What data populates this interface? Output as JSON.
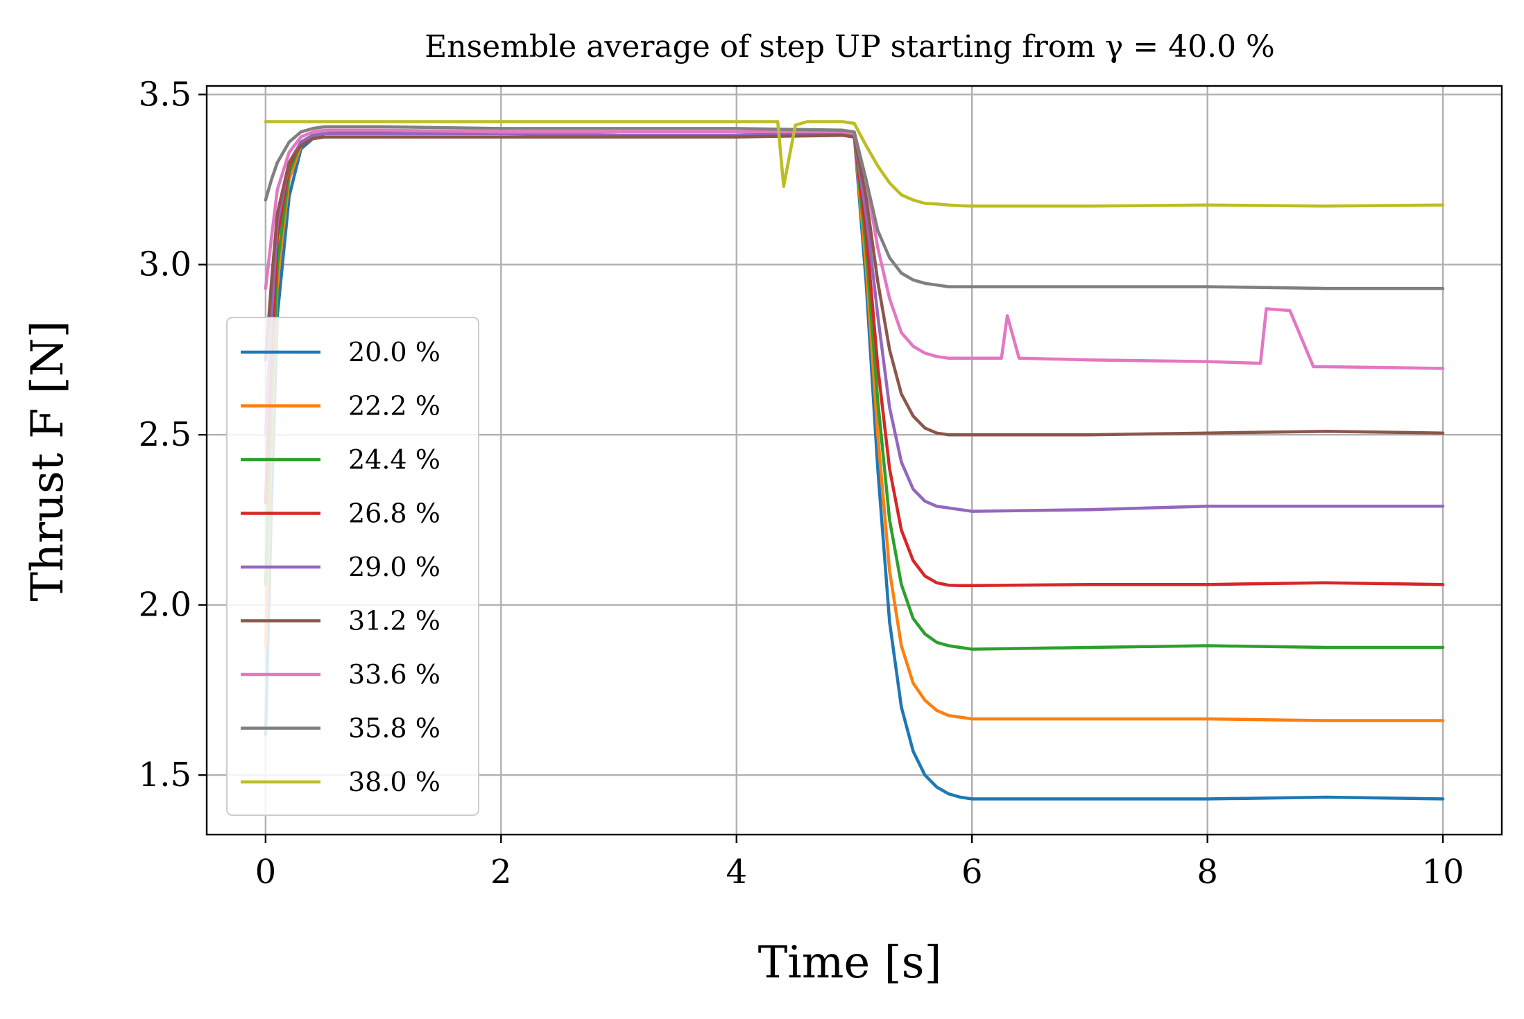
{
  "chart_data": {
    "type": "line",
    "title": "Ensemble average of step UP starting from γ = 40.0 %",
    "xlabel": "Time [s]",
    "ylabel": "Thrust F [N]",
    "xlim": [
      -0.5,
      10.5
    ],
    "ylim": [
      1.325,
      3.525
    ],
    "xticks": [
      0,
      2,
      4,
      6,
      8,
      10
    ],
    "xtick_labels": [
      "0",
      "2",
      "4",
      "6",
      "8",
      "10"
    ],
    "yticks": [
      1.5,
      2.0,
      2.5,
      3.0,
      3.5
    ],
    "ytick_labels": [
      "1.5",
      "2.0",
      "2.5",
      "3.0",
      "3.5"
    ],
    "grid": true,
    "legend_position": "center-left",
    "series": [
      {
        "name": "20.0 %",
        "color": "#1f77b4",
        "x": [
          0,
          0.05,
          0.1,
          0.2,
          0.3,
          0.4,
          0.5,
          1,
          2,
          3,
          4,
          4.9,
          5.0,
          5.1,
          5.2,
          5.3,
          5.4,
          5.5,
          5.6,
          5.7,
          5.8,
          5.9,
          6,
          7,
          8,
          9,
          10
        ],
        "y": [
          1.62,
          2.3,
          2.85,
          3.2,
          3.34,
          3.37,
          3.385,
          3.39,
          3.39,
          3.39,
          3.39,
          3.385,
          3.38,
          2.95,
          2.4,
          1.95,
          1.7,
          1.57,
          1.5,
          1.465,
          1.445,
          1.435,
          1.43,
          1.43,
          1.43,
          1.435,
          1.43
        ]
      },
      {
        "name": "22.2 %",
        "color": "#ff7f0e",
        "x": [
          0,
          0.05,
          0.1,
          0.2,
          0.3,
          0.4,
          0.5,
          1,
          2,
          3,
          4,
          4.9,
          5.0,
          5.1,
          5.2,
          5.3,
          5.4,
          5.5,
          5.6,
          5.7,
          5.8,
          5.9,
          6,
          7,
          8,
          9,
          10
        ],
        "y": [
          1.88,
          2.5,
          2.95,
          3.25,
          3.35,
          3.38,
          3.385,
          3.39,
          3.39,
          3.39,
          3.39,
          3.385,
          3.38,
          3.0,
          2.5,
          2.1,
          1.88,
          1.77,
          1.72,
          1.69,
          1.675,
          1.67,
          1.665,
          1.665,
          1.665,
          1.66,
          1.66
        ]
      },
      {
        "name": "24.4 %",
        "color": "#2ca02c",
        "x": [
          0,
          0.05,
          0.1,
          0.2,
          0.3,
          0.4,
          0.5,
          1,
          2,
          3,
          4,
          4.9,
          5.0,
          5.1,
          5.2,
          5.3,
          5.4,
          5.5,
          5.6,
          5.7,
          5.8,
          5.9,
          6,
          7,
          8,
          9,
          10
        ],
        "y": [
          2.06,
          2.6,
          3.0,
          3.27,
          3.36,
          3.38,
          3.385,
          3.39,
          3.39,
          3.39,
          3.39,
          3.385,
          3.38,
          3.05,
          2.6,
          2.25,
          2.06,
          1.96,
          1.915,
          1.89,
          1.88,
          1.875,
          1.87,
          1.875,
          1.88,
          1.875,
          1.875
        ]
      },
      {
        "name": "26.8 %",
        "color": "#d62728",
        "x": [
          0,
          0.05,
          0.1,
          0.2,
          0.3,
          0.4,
          0.5,
          1,
          2,
          3,
          4,
          4.9,
          5.0,
          5.1,
          5.2,
          5.3,
          5.4,
          5.5,
          5.6,
          5.7,
          5.8,
          5.9,
          6,
          7,
          8,
          9,
          10
        ],
        "y": [
          2.3,
          2.75,
          3.08,
          3.29,
          3.36,
          3.38,
          3.385,
          3.39,
          3.39,
          3.39,
          3.39,
          3.385,
          3.38,
          3.1,
          2.7,
          2.4,
          2.22,
          2.13,
          2.085,
          2.065,
          2.058,
          2.057,
          2.057,
          2.06,
          2.06,
          2.065,
          2.06
        ]
      },
      {
        "name": "29.0 %",
        "color": "#9467bd",
        "x": [
          0,
          0.05,
          0.1,
          0.2,
          0.3,
          0.4,
          0.5,
          1,
          2,
          3,
          4,
          4.9,
          5.0,
          5.1,
          5.2,
          5.3,
          5.4,
          5.5,
          5.6,
          5.7,
          5.8,
          5.9,
          6,
          7,
          8,
          9,
          10
        ],
        "y": [
          2.5,
          2.85,
          3.12,
          3.3,
          3.36,
          3.38,
          3.385,
          3.385,
          3.385,
          3.38,
          3.38,
          3.38,
          3.375,
          3.15,
          2.85,
          2.58,
          2.42,
          2.34,
          2.305,
          2.29,
          2.285,
          2.28,
          2.275,
          2.28,
          2.29,
          2.29,
          2.29
        ]
      },
      {
        "name": "31.2 %",
        "color": "#8c564b",
        "x": [
          0,
          0.05,
          0.1,
          0.2,
          0.3,
          0.4,
          0.5,
          1,
          2,
          3,
          4,
          4.9,
          5.0,
          5.1,
          5.2,
          5.3,
          5.4,
          5.5,
          5.6,
          5.7,
          5.8,
          5.9,
          6,
          7,
          8,
          9,
          10
        ],
        "y": [
          2.72,
          2.95,
          3.15,
          3.3,
          3.35,
          3.37,
          3.375,
          3.375,
          3.375,
          3.375,
          3.375,
          3.38,
          3.375,
          3.2,
          2.95,
          2.75,
          2.62,
          2.555,
          2.52,
          2.505,
          2.5,
          2.5,
          2.5,
          2.5,
          2.505,
          2.51,
          2.505
        ]
      },
      {
        "name": "33.6 %",
        "color": "#e377c2",
        "x": [
          0,
          0.05,
          0.1,
          0.2,
          0.3,
          0.4,
          0.5,
          1,
          2,
          3,
          4,
          4.9,
          5.0,
          5.1,
          5.2,
          5.3,
          5.4,
          5.5,
          5.6,
          5.7,
          5.8,
          5.9,
          6,
          6.25,
          6.3,
          6.4,
          7,
          8,
          8.45,
          8.5,
          8.7,
          8.9,
          9,
          10
        ],
        "y": [
          2.93,
          3.08,
          3.22,
          3.33,
          3.375,
          3.39,
          3.395,
          3.395,
          3.39,
          3.39,
          3.39,
          3.39,
          3.385,
          3.25,
          3.05,
          2.9,
          2.8,
          2.76,
          2.74,
          2.73,
          2.725,
          2.725,
          2.725,
          2.725,
          2.85,
          2.725,
          2.72,
          2.715,
          2.71,
          2.87,
          2.865,
          2.7,
          2.7,
          2.695
        ]
      },
      {
        "name": "35.8 %",
        "color": "#7f7f7f",
        "x": [
          0,
          0.05,
          0.1,
          0.2,
          0.3,
          0.4,
          0.5,
          1,
          2,
          3,
          4,
          4.9,
          5.0,
          5.1,
          5.2,
          5.3,
          5.4,
          5.5,
          5.6,
          5.7,
          5.8,
          5.9,
          6,
          7,
          8,
          9,
          10
        ],
        "y": [
          3.19,
          3.25,
          3.3,
          3.36,
          3.39,
          3.4,
          3.405,
          3.405,
          3.4,
          3.4,
          3.4,
          3.395,
          3.39,
          3.25,
          3.1,
          3.02,
          2.975,
          2.955,
          2.945,
          2.94,
          2.935,
          2.935,
          2.935,
          2.935,
          2.935,
          2.93,
          2.93
        ]
      },
      {
        "name": "38.0 %",
        "color": "#bcbd22",
        "x": [
          0,
          0.5,
          1,
          2,
          3,
          4,
          4.35,
          4.4,
          4.5,
          4.6,
          4.9,
          5.0,
          5.1,
          5.2,
          5.3,
          5.4,
          5.5,
          5.6,
          5.7,
          5.8,
          5.9,
          6,
          7,
          8,
          9,
          10
        ],
        "y": [
          3.42,
          3.42,
          3.42,
          3.42,
          3.42,
          3.42,
          3.42,
          3.23,
          3.41,
          3.42,
          3.42,
          3.415,
          3.35,
          3.29,
          3.24,
          3.205,
          3.19,
          3.18,
          3.178,
          3.175,
          3.173,
          3.172,
          3.172,
          3.175,
          3.172,
          3.175
        ]
      }
    ]
  }
}
